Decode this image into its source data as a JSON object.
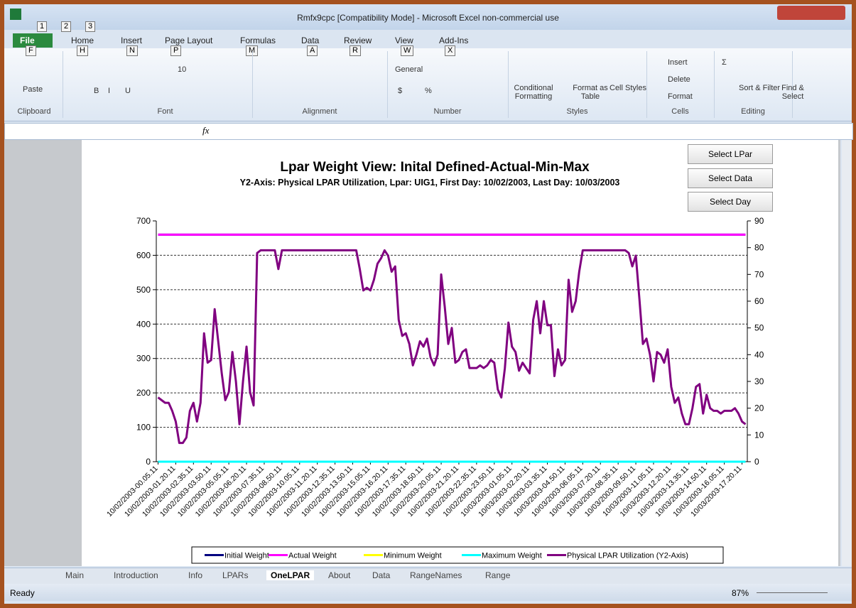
{
  "window": {
    "title": "Rmfx9cpc  [Compatibility Mode]  -  Microsoft Excel non-commercial use",
    "quick_access_keytips": [
      "1",
      "2",
      "3"
    ]
  },
  "ribbon": {
    "tabs": [
      {
        "label": "File",
        "keytip": "F"
      },
      {
        "label": "Home",
        "keytip": "H"
      },
      {
        "label": "Insert",
        "keytip": "N"
      },
      {
        "label": "Page Layout",
        "keytip": "P"
      },
      {
        "label": "Formulas",
        "keytip": "M"
      },
      {
        "label": "Data",
        "keytip": "A"
      },
      {
        "label": "Review",
        "keytip": "R"
      },
      {
        "label": "View",
        "keytip": "W"
      },
      {
        "label": "Add-Ins",
        "keytip": "X"
      }
    ],
    "groups": [
      {
        "label": "Clipboard",
        "items": [
          "Paste"
        ]
      },
      {
        "label": "Font",
        "items": [
          "10",
          "B",
          "I",
          "U"
        ]
      },
      {
        "label": "Alignment",
        "items": []
      },
      {
        "label": "Number",
        "items": [
          "General",
          "$",
          "%"
        ]
      },
      {
        "label": "Styles",
        "items": [
          "Conditional Formatting",
          "Format as Table",
          "Cell Styles"
        ]
      },
      {
        "label": "Cells",
        "items": [
          "Insert",
          "Delete",
          "Format"
        ]
      },
      {
        "label": "Editing",
        "items": [
          "Σ",
          "Sort & Filter",
          "Find & Select"
        ]
      }
    ]
  },
  "formula_bar": {
    "function_label": "fx"
  },
  "sheet_buttons": [
    "Select LPar",
    "Select Data",
    "Select Day"
  ],
  "chart_data": {
    "type": "line",
    "title": "Lpar Weight View: Inital Defined-Actual-Min-Max",
    "subtitle": "Y2-Axis: Physical LPAR  Utilization, Lpar: UIG1, First Day: 10/02/2003, Last Day:  10/03/2003",
    "categories": [
      "10/02/2003-00.05.11",
      null,
      null,
      null,
      null,
      "10/02/2003-01.20.11",
      null,
      null,
      null,
      null,
      "10/02/2003-02.35.11",
      null,
      null,
      null,
      null,
      "10/02/2003-03.50.11",
      null,
      null,
      null,
      null,
      "10/02/2003-05.05.11",
      null,
      null,
      null,
      null,
      "10/02/2003-06.20.11",
      null,
      null,
      null,
      null,
      "10/02/2003-07.35.11",
      null,
      null,
      null,
      null,
      "10/02/2003-08.50.11",
      null,
      null,
      null,
      null,
      "10/02/2003-10.05.11",
      null,
      null,
      null,
      null,
      "10/02/2003-11.20.11",
      null,
      null,
      null,
      null,
      "10/02/2003-12.35.11",
      null,
      null,
      null,
      null,
      "10/02/2003-13.50.11",
      null,
      null,
      null,
      null,
      "10/02/2003-15.05.11",
      null,
      null,
      null,
      null,
      "10/02/2003-16.20.11",
      null,
      null,
      null,
      null,
      "10/02/2003-17.35.11",
      null,
      null,
      null,
      null,
      "10/02/2003-18.50.11",
      null,
      null,
      null,
      null,
      "10/02/2003-20.05.11",
      null,
      null,
      null,
      null,
      "10/02/2003-21.20.11",
      null,
      null,
      null,
      null,
      "10/02/2003-22.35.11",
      null,
      null,
      null,
      null,
      "10/02/2003-23.50.11",
      null,
      null,
      null,
      null,
      "10/03/2003-01.05.11",
      null,
      null,
      null,
      null,
      "10/03/2003-02.20.11",
      null,
      null,
      null,
      null,
      "10/03/2003-03.35.11",
      null,
      null,
      null,
      null,
      "10/03/2003-04.50.11",
      null,
      null,
      null,
      null,
      "10/03/2003-06.05.11",
      null,
      null,
      null,
      null,
      "10/03/2003-07.20.11",
      null,
      null,
      null,
      null,
      "10/03/2003-08.35.11",
      null,
      null,
      null,
      null,
      "10/03/2003-09.50.11",
      null,
      null,
      null,
      null,
      "10/03/2003-11.05.11",
      null,
      null,
      null,
      null,
      "10/03/2003-12.20.11",
      null,
      null,
      null,
      null,
      "10/03/2003-13.35.11",
      null,
      null,
      null,
      null,
      "10/03/2003-14.50.11",
      null,
      null,
      null,
      null,
      "10/03/2003-16.05.11",
      null,
      null,
      null,
      null,
      "10/03/2003-17.20.11",
      null
    ],
    "series": [
      {
        "name": "Initial Weight",
        "color": "#000080",
        "values": [
          660,
          660,
          660,
          660,
          660,
          660,
          660,
          660,
          660,
          660,
          660,
          660,
          660,
          660,
          660,
          660,
          660,
          660,
          660,
          660,
          660,
          660,
          660,
          660,
          660,
          660,
          660,
          660,
          660,
          660,
          660,
          660,
          660,
          660,
          660,
          660,
          660,
          660,
          660,
          660,
          660,
          660,
          660,
          660,
          660,
          660,
          660,
          660,
          660,
          660,
          660,
          660,
          660,
          660,
          660,
          660,
          660,
          660,
          660,
          660,
          660,
          660,
          660,
          660,
          660,
          660,
          660,
          660,
          660,
          660,
          660,
          660,
          660,
          660,
          660,
          660,
          660,
          660,
          660,
          660,
          660,
          660,
          660,
          660,
          660,
          660,
          660,
          660,
          660,
          660,
          660,
          660,
          660,
          660,
          660,
          660,
          660,
          660,
          660,
          660,
          660,
          660,
          660,
          660,
          660,
          660,
          660,
          660,
          660,
          660,
          660,
          660,
          660,
          660,
          660,
          660,
          660,
          660,
          660,
          660,
          660,
          660,
          660,
          660,
          660,
          660,
          660,
          660,
          660,
          660,
          660,
          660,
          660,
          660,
          660,
          660,
          660,
          660,
          660,
          660,
          660,
          660,
          660,
          660,
          660,
          660,
          660,
          660,
          660,
          660,
          660,
          660,
          660,
          660,
          660,
          660,
          660,
          660,
          660,
          660,
          660,
          660,
          660,
          660,
          660,
          660,
          660
        ]
      },
      {
        "name": "Actual Weight",
        "color": "#ff00ff",
        "values": [
          660,
          660,
          660,
          660,
          660,
          660,
          660,
          660,
          660,
          660,
          660,
          660,
          660,
          660,
          660,
          660,
          660,
          660,
          660,
          660,
          660,
          660,
          660,
          660,
          660,
          660,
          660,
          660,
          660,
          660,
          660,
          660,
          660,
          660,
          660,
          660,
          660,
          660,
          660,
          660,
          660,
          660,
          660,
          660,
          660,
          660,
          660,
          660,
          660,
          660,
          660,
          660,
          660,
          660,
          660,
          660,
          660,
          660,
          660,
          660,
          660,
          660,
          660,
          660,
          660,
          660,
          660,
          660,
          660,
          660,
          660,
          660,
          660,
          660,
          660,
          660,
          660,
          660,
          660,
          660,
          660,
          660,
          660,
          660,
          660,
          660,
          660,
          660,
          660,
          660,
          660,
          660,
          660,
          660,
          660,
          660,
          660,
          660,
          660,
          660,
          660,
          660,
          660,
          660,
          660,
          660,
          660,
          660,
          660,
          660,
          660,
          660,
          660,
          660,
          660,
          660,
          660,
          660,
          660,
          660,
          660,
          660,
          660,
          660,
          660,
          660,
          660,
          660,
          660,
          660,
          660,
          660,
          660,
          660,
          660,
          660,
          660,
          660,
          660,
          660,
          660,
          660,
          660,
          660,
          660,
          660,
          660,
          660,
          660,
          660,
          660,
          660,
          660,
          660,
          660,
          660,
          660,
          660,
          660,
          660,
          660,
          660,
          660,
          660,
          660,
          660,
          660
        ]
      },
      {
        "name": "Minimum Weight",
        "color": "#ffff00",
        "values": [
          0,
          0,
          0,
          0,
          0,
          0,
          0,
          0,
          0,
          0,
          0,
          0,
          0,
          0,
          0,
          0,
          0,
          0,
          0,
          0,
          0,
          0,
          0,
          0,
          0,
          0,
          0,
          0,
          0,
          0,
          0,
          0,
          0,
          0,
          0,
          0,
          0,
          0,
          0,
          0,
          0,
          0,
          0,
          0,
          0,
          0,
          0,
          0,
          0,
          0,
          0,
          0,
          0,
          0,
          0,
          0,
          0,
          0,
          0,
          0,
          0,
          0,
          0,
          0,
          0,
          0,
          0,
          0,
          0,
          0,
          0,
          0,
          0,
          0,
          0,
          0,
          0,
          0,
          0,
          0,
          0,
          0,
          0,
          0,
          0,
          0,
          0,
          0,
          0,
          0,
          0,
          0,
          0,
          0,
          0,
          0,
          0,
          0,
          0,
          0,
          0,
          0,
          0,
          0,
          0,
          0,
          0,
          0,
          0,
          0,
          0,
          0,
          0,
          0,
          0,
          0,
          0,
          0,
          0,
          0,
          0,
          0,
          0,
          0,
          0,
          0,
          0,
          0,
          0,
          0,
          0,
          0,
          0,
          0,
          0,
          0,
          0,
          0,
          0,
          0,
          0,
          0,
          0,
          0,
          0,
          0,
          0,
          0,
          0,
          0,
          0,
          0,
          0,
          0,
          0,
          0,
          0,
          0,
          0,
          0,
          0,
          0,
          0,
          0,
          0,
          0,
          0
        ]
      },
      {
        "name": "Maximum Weight",
        "color": "#00ffff",
        "values": [
          0,
          0,
          0,
          0,
          0,
          0,
          0,
          0,
          0,
          0,
          0,
          0,
          0,
          0,
          0,
          0,
          0,
          0,
          0,
          0,
          0,
          0,
          0,
          0,
          0,
          0,
          0,
          0,
          0,
          0,
          0,
          0,
          0,
          0,
          0,
          0,
          0,
          0,
          0,
          0,
          0,
          0,
          0,
          0,
          0,
          0,
          0,
          0,
          0,
          0,
          0,
          0,
          0,
          0,
          0,
          0,
          0,
          0,
          0,
          0,
          0,
          0,
          0,
          0,
          0,
          0,
          0,
          0,
          0,
          0,
          0,
          0,
          0,
          0,
          0,
          0,
          0,
          0,
          0,
          0,
          0,
          0,
          0,
          0,
          0,
          0,
          0,
          0,
          0,
          0,
          0,
          0,
          0,
          0,
          0,
          0,
          0,
          0,
          0,
          0,
          0,
          0,
          0,
          0,
          0,
          0,
          0,
          0,
          0,
          0,
          0,
          0,
          0,
          0,
          0,
          0,
          0,
          0,
          0,
          0,
          0,
          0,
          0,
          0,
          0,
          0,
          0,
          0,
          0,
          0,
          0,
          0,
          0,
          0,
          0,
          0,
          0,
          0,
          0,
          0,
          0,
          0,
          0,
          0,
          0,
          0,
          0,
          0,
          0,
          0,
          0,
          0,
          0,
          0,
          0,
          0,
          0,
          0,
          0,
          0,
          0,
          0,
          0,
          0,
          0,
          0,
          0
        ]
      },
      {
        "name": "Physical LPAR Utilization (Y2-Axis)",
        "color": "#800080",
        "axis": "y2",
        "values": [
          24,
          23,
          22,
          22,
          19,
          15,
          7,
          7,
          9,
          19,
          22,
          15,
          22,
          48,
          37,
          38,
          57,
          45,
          33,
          23,
          26,
          41,
          30,
          14,
          30,
          43,
          26,
          21,
          78,
          79,
          79,
          79,
          79,
          79,
          72,
          79,
          79,
          79,
          79,
          79,
          79,
          79,
          79,
          79,
          79,
          79,
          79,
          79,
          79,
          79,
          79,
          79,
          79,
          79,
          79,
          79,
          79,
          72,
          64,
          65,
          64,
          68,
          74,
          76,
          79,
          77,
          71,
          73,
          53,
          47,
          48,
          44,
          36,
          40,
          45,
          43,
          46,
          39,
          36,
          40,
          70,
          58,
          44,
          50,
          37,
          38,
          41,
          42,
          35,
          35,
          35,
          36,
          35,
          36,
          38,
          37,
          27,
          24,
          35,
          52,
          43,
          41,
          34,
          37,
          35,
          33,
          53,
          60,
          48,
          60,
          51,
          51,
          32,
          42,
          36,
          38,
          68,
          56,
          60,
          71,
          79,
          79,
          79,
          79,
          79,
          79,
          79,
          79,
          79,
          79,
          79,
          79,
          79,
          78,
          73,
          77,
          61,
          44,
          46,
          40,
          30,
          41,
          40,
          37,
          42,
          28,
          22,
          24,
          18,
          14,
          14,
          20,
          28,
          29,
          18,
          25,
          20,
          19,
          19,
          18,
          19,
          19,
          19,
          20,
          18,
          15,
          14
        ]
      }
    ],
    "ylim": [
      0,
      700
    ],
    "yticks": [
      0,
      100,
      200,
      300,
      400,
      500,
      600,
      700
    ],
    "y2lim": [
      0,
      90
    ],
    "y2ticks": [
      0,
      10,
      20,
      30,
      40,
      50,
      60,
      70,
      80,
      90
    ],
    "grid": true,
    "legend": "bottom"
  },
  "sheet_tabs": [
    "Main",
    "Introduction",
    "Info",
    "LPARs",
    "OneLPAR",
    "About",
    "Data",
    "RangeNames",
    "Range"
  ],
  "status": {
    "mode": "Ready",
    "zoom": "87%"
  }
}
